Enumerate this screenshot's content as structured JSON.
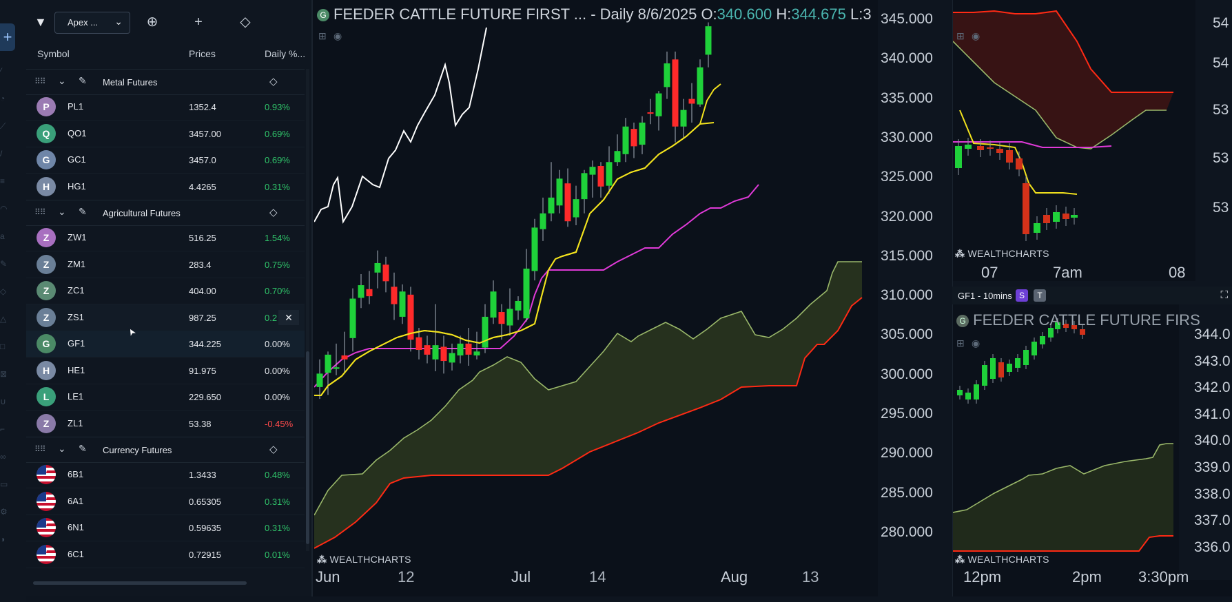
{
  "toolbar": {
    "watchlist_name": "Apex ..."
  },
  "table_headers": {
    "symbol": "Symbol",
    "prices": "Prices",
    "daily": "Daily %..."
  },
  "groups": [
    {
      "name": "Metal Futures",
      "rows": [
        {
          "letter": "P",
          "symbol": "PL1",
          "price": "1352.4",
          "change": "0.93%",
          "color": "#9b7bb3"
        },
        {
          "letter": "Q",
          "symbol": "QO1",
          "price": "3457.00",
          "change": "0.69%",
          "color": "#3aa07a"
        },
        {
          "letter": "G",
          "symbol": "GC1",
          "price": "3457.0",
          "change": "0.69%",
          "color": "#6f86a8"
        },
        {
          "letter": "H",
          "symbol": "HG1",
          "price": "4.4265",
          "change": "0.31%",
          "color": "#7a8aa4"
        }
      ]
    },
    {
      "name": "Agricultural Futures",
      "rows": [
        {
          "letter": "Z",
          "symbol": "ZW1",
          "price": "516.25",
          "change": "1.54%",
          "color": "#a86fc0"
        },
        {
          "letter": "Z",
          "symbol": "ZM1",
          "price": "283.4",
          "change": "0.75%",
          "color": "#6a7f97"
        },
        {
          "letter": "Z",
          "symbol": "ZC1",
          "price": "404.00",
          "change": "0.70%",
          "color": "#5a8a73"
        },
        {
          "letter": "Z",
          "symbol": "ZS1",
          "price": "987.25",
          "change": "0.2",
          "color": "#6a7f97"
        },
        {
          "letter": "G",
          "symbol": "GF1",
          "price": "344.225",
          "change": "0.00%",
          "color": "#4b8a66"
        },
        {
          "letter": "H",
          "symbol": "HE1",
          "price": "91.975",
          "change": "0.00%",
          "color": "#7a8aa4"
        },
        {
          "letter": "L",
          "symbol": "LE1",
          "price": "229.650",
          "change": "0.00%",
          "color": "#3aa07a"
        },
        {
          "letter": "Z",
          "symbol": "ZL1",
          "price": "53.38",
          "change": "-0.45%",
          "color": "#8a7aa8"
        }
      ]
    },
    {
      "name": "Currency Futures",
      "rows": [
        {
          "symbol": "6B1",
          "price": "1.3433",
          "change": "0.48%"
        },
        {
          "symbol": "6A1",
          "price": "0.65305",
          "change": "0.31%"
        },
        {
          "symbol": "6N1",
          "price": "0.59635",
          "change": "0.31%"
        },
        {
          "symbol": "6C1",
          "price": "0.72915",
          "change": "0.01%"
        }
      ]
    }
  ],
  "main_chart": {
    "title": "FEEDER CATTLE FUTURE FIRST ... - Daily 8/6/2025",
    "o_label": "O:",
    "o_value": "340.600",
    "h_label": "H:",
    "h_value": "344.675",
    "l_label": "L:3",
    "watermark": "WEALTHCHARTS",
    "y_ticks": [
      "345.000",
      "340.000",
      "335.000",
      "330.000",
      "325.000",
      "320.000",
      "315.000",
      "310.000",
      "305.000",
      "300.000",
      "295.000",
      "290.000",
      "285.000",
      "280.000"
    ],
    "x_ticks": [
      "Jun",
      "12",
      "Jul",
      "14",
      "Aug",
      "13"
    ]
  },
  "top_right_chart": {
    "watermark": "WEALTHCHARTS",
    "x_ticks": [
      "07",
      "7am",
      "08"
    ],
    "y_ticks": [
      "54",
      "54",
      "53",
      "53",
      "53"
    ]
  },
  "bottom_right_chart": {
    "tab_label": "GF1 - 10mins",
    "badge_s": "S",
    "badge_t": "T",
    "title": "FEEDER CATTLE FUTURE FIRS",
    "watermark": "WEALTHCHARTS",
    "y_ticks": [
      "344.0",
      "343.0",
      "342.0",
      "341.0",
      "340.0",
      "339.0",
      "338.0",
      "337.0",
      "336.0"
    ],
    "x_ticks": [
      "12pm",
      "2pm",
      "3:30pm"
    ]
  },
  "colors": {
    "up": "#1fd13a",
    "down": "#ff2a2a",
    "tenkan": "#f2e21d",
    "kijun": "#e03ad8",
    "lagging": "#ffffff",
    "span_a": "#9ab86a",
    "span_b": "#ff2a14"
  }
}
